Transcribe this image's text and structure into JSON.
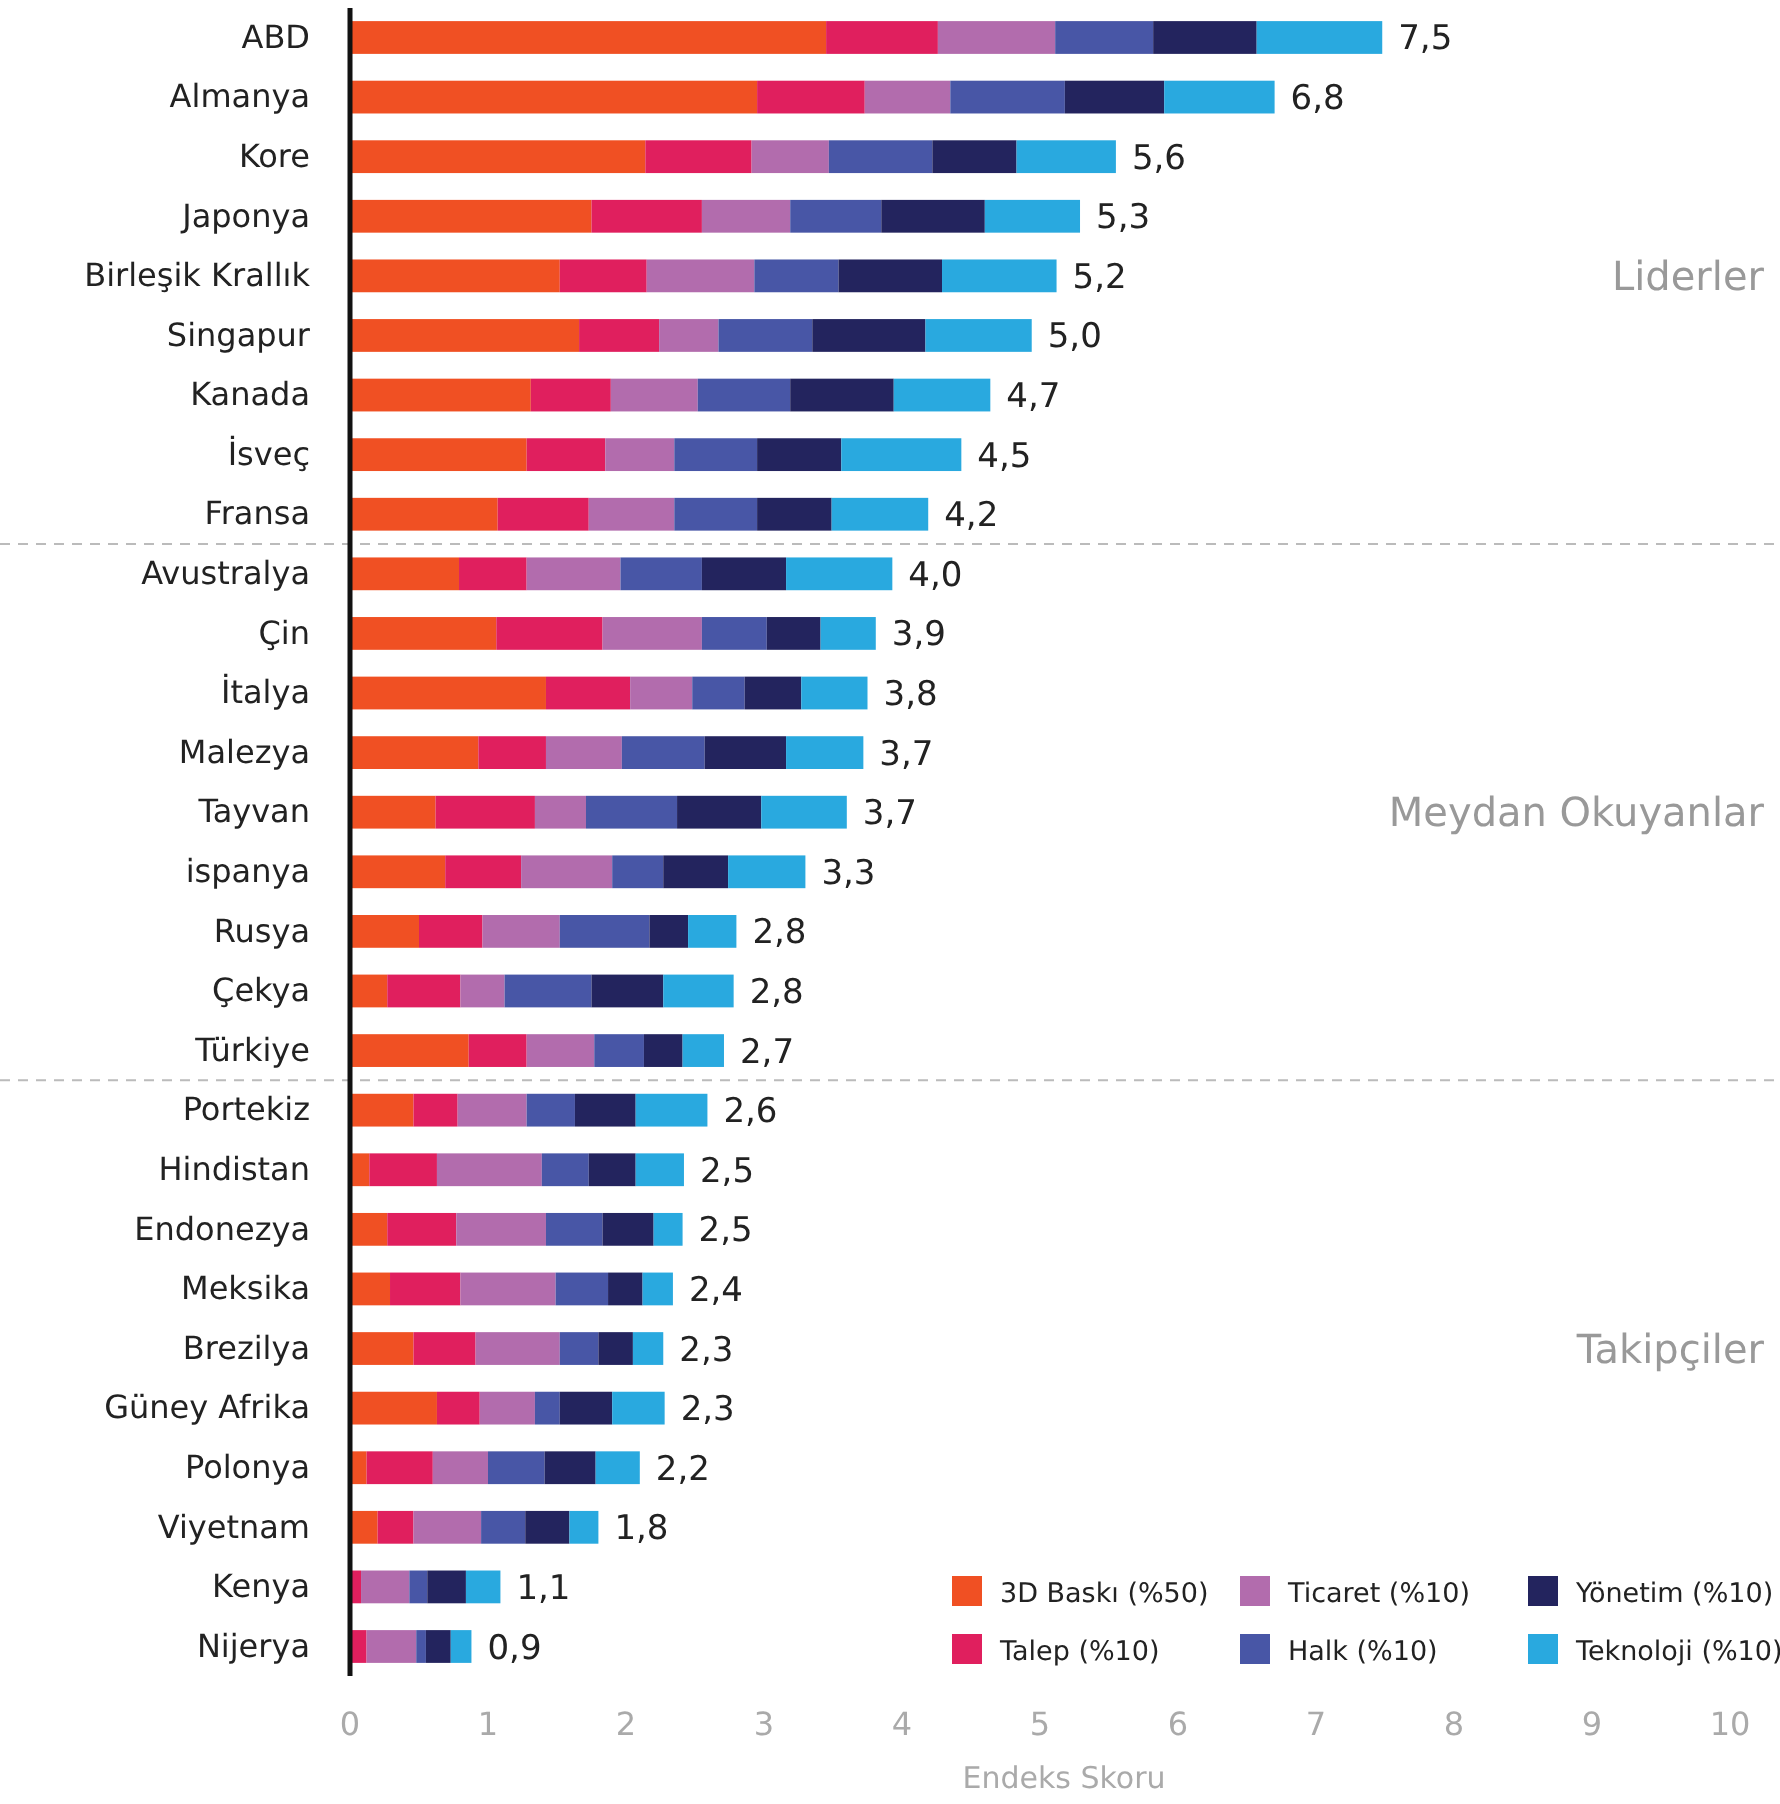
{
  "chart_data": {
    "type": "bar",
    "orientation": "horizontal",
    "stacked": true,
    "xlabel": "Endeks Skoru",
    "categories": [
      "ABD",
      "Almanya",
      "Kore",
      "Japonya",
      "Birleşik Krallık",
      "Singapur",
      "Kanada",
      "İsveç",
      "Fransa",
      "Avustralya",
      "Çin",
      "İtalya",
      "Malezya",
      "Tayvan",
      "ispanya",
      "Rusya",
      "Çekya",
      "Türkiye",
      "Portekiz",
      "Hindistan",
      "Endonezya",
      "Meksika",
      "Brezilya",
      "Güney Afrika",
      "Polonya",
      "Viyetnam",
      "Kenya",
      "Nijerya"
    ],
    "series": [
      {
        "name": "3D Baskı (%50)",
        "color": "#f05023",
        "values": [
          3.45,
          2.95,
          2.14,
          1.75,
          1.52,
          1.66,
          1.31,
          1.28,
          1.07,
          0.79,
          1.06,
          1.42,
          0.93,
          0.62,
          0.69,
          0.5,
          0.27,
          0.86,
          0.46,
          0.14,
          0.27,
          0.29,
          0.46,
          0.63,
          0.12,
          0.2,
          0.0,
          0.0
        ]
      },
      {
        "name": "Talep (%10)",
        "color": "#e01f5e",
        "values": [
          0.81,
          0.78,
          0.77,
          0.8,
          0.63,
          0.58,
          0.58,
          0.57,
          0.66,
          0.49,
          0.77,
          0.61,
          0.49,
          0.72,
          0.55,
          0.46,
          0.53,
          0.42,
          0.32,
          0.49,
          0.5,
          0.51,
          0.45,
          0.31,
          0.48,
          0.26,
          0.08,
          0.12
        ]
      },
      {
        "name": "Ticaret (%10)",
        "color": "#b26cad",
        "values": [
          0.85,
          0.62,
          0.56,
          0.64,
          0.78,
          0.43,
          0.63,
          0.5,
          0.62,
          0.68,
          0.72,
          0.45,
          0.55,
          0.37,
          0.66,
          0.56,
          0.32,
          0.49,
          0.5,
          0.76,
          0.65,
          0.69,
          0.61,
          0.4,
          0.4,
          0.49,
          0.35,
          0.36
        ]
      },
      {
        "name": "Halk (%10)",
        "color": "#4856a6",
        "values": [
          0.71,
          0.83,
          0.75,
          0.66,
          0.61,
          0.68,
          0.67,
          0.6,
          0.6,
          0.59,
          0.47,
          0.38,
          0.6,
          0.66,
          0.37,
          0.65,
          0.63,
          0.36,
          0.35,
          0.34,
          0.41,
          0.38,
          0.28,
          0.18,
          0.41,
          0.32,
          0.13,
          0.07
        ]
      },
      {
        "name": "Yönetim (%10)",
        "color": "#23245e",
        "values": [
          0.75,
          0.72,
          0.61,
          0.75,
          0.75,
          0.82,
          0.75,
          0.61,
          0.54,
          0.61,
          0.39,
          0.41,
          0.59,
          0.61,
          0.47,
          0.28,
          0.52,
          0.28,
          0.44,
          0.34,
          0.37,
          0.25,
          0.25,
          0.38,
          0.37,
          0.32,
          0.28,
          0.18
        ]
      },
      {
        "name": "Teknoloji (%10)",
        "color": "#29a9df",
        "values": [
          0.91,
          0.8,
          0.72,
          0.69,
          0.83,
          0.77,
          0.7,
          0.87,
          0.7,
          0.77,
          0.4,
          0.48,
          0.56,
          0.62,
          0.56,
          0.35,
          0.51,
          0.3,
          0.52,
          0.35,
          0.21,
          0.22,
          0.22,
          0.38,
          0.32,
          0.21,
          0.25,
          0.15
        ]
      }
    ],
    "totals": [
      "7,5",
      "6,8",
      "5,6",
      "5,3",
      "5,2",
      "5,0",
      "4,7",
      "4,5",
      "4,2",
      "4,0",
      "3,9",
      "3,8",
      "3,7",
      "3,7",
      "3,3",
      "2,8",
      "2,8",
      "2,7",
      "2,6",
      "2,5",
      "2,5",
      "2,4",
      "2,3",
      "2,3",
      "2,2",
      "1,8",
      "1,1",
      "0,9"
    ],
    "annotations": [
      "Liderler",
      "Meydan Okuyanlar",
      "Takipçiler"
    ],
    "xlim": [
      0,
      10
    ],
    "xticks": [
      0,
      1,
      2,
      3,
      4,
      5,
      6,
      7,
      8,
      9,
      10
    ],
    "grid": false,
    "legend": "bottom right"
  }
}
